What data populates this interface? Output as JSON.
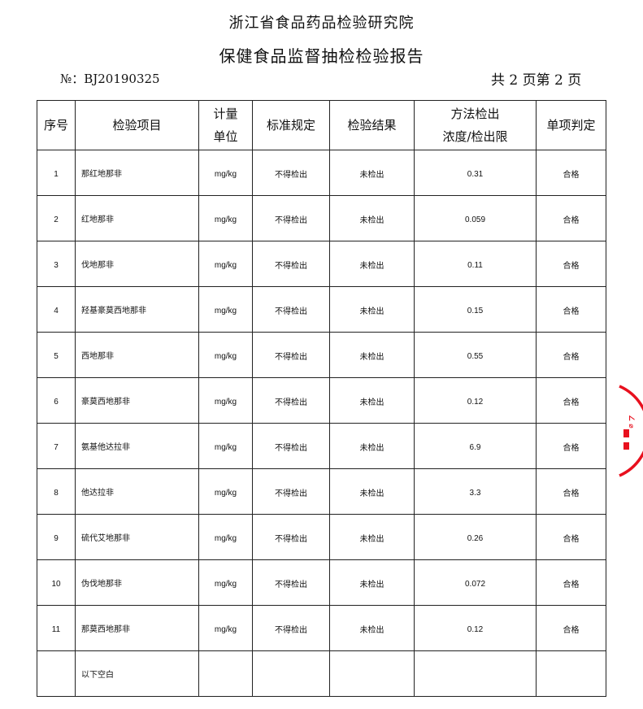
{
  "header": {
    "institute": "浙江省食品药品检验研究院",
    "title": "保健食品监督抽检检验报告",
    "report_no": "№：BJ20190325",
    "page_info": "共 2 页第 2 页"
  },
  "table": {
    "columns": [
      "序号",
      "检验项目",
      "计量\n单位",
      "标准规定",
      "检验结果",
      "方法检出\n浓度/检出限",
      "单项判定"
    ],
    "col_unit": [
      "计量",
      "单位"
    ],
    "col_limit": [
      "方法检出",
      "浓度/检出限"
    ],
    "rows": [
      {
        "no": "1",
        "item": "那红地那非",
        "unit": "mg/kg",
        "standard": "不得检出",
        "result": "未检出",
        "limit": "0.31",
        "verdict": "合格"
      },
      {
        "no": "2",
        "item": "红地那非",
        "unit": "mg/kg",
        "standard": "不得检出",
        "result": "未检出",
        "limit": "0.059",
        "verdict": "合格"
      },
      {
        "no": "3",
        "item": "伐地那非",
        "unit": "mg/kg",
        "standard": "不得检出",
        "result": "未检出",
        "limit": "0.11",
        "verdict": "合格"
      },
      {
        "no": "4",
        "item": "羟基豪莫西地那非",
        "unit": "mg/kg",
        "standard": "不得检出",
        "result": "未检出",
        "limit": "0.15",
        "verdict": "合格"
      },
      {
        "no": "5",
        "item": "西地那非",
        "unit": "mg/kg",
        "standard": "不得检出",
        "result": "未检出",
        "limit": "0.55",
        "verdict": "合格"
      },
      {
        "no": "6",
        "item": "豪莫西地那非",
        "unit": "mg/kg",
        "standard": "不得检出",
        "result": "未检出",
        "limit": "0.12",
        "verdict": "合格"
      },
      {
        "no": "7",
        "item": "氨基他达拉非",
        "unit": "mg/kg",
        "standard": "不得检出",
        "result": "未检出",
        "limit": "6.9",
        "verdict": "合格"
      },
      {
        "no": "8",
        "item": "他达拉非",
        "unit": "mg/kg",
        "standard": "不得检出",
        "result": "未检出",
        "limit": "3.3",
        "verdict": "合格"
      },
      {
        "no": "9",
        "item": "硫代艾地那非",
        "unit": "mg/kg",
        "standard": "不得检出",
        "result": "未检出",
        "limit": "0.26",
        "verdict": "合格"
      },
      {
        "no": "10",
        "item": "伪伐地那非",
        "unit": "mg/kg",
        "standard": "不得检出",
        "result": "未检出",
        "limit": "0.072",
        "verdict": "合格"
      },
      {
        "no": "11",
        "item": "那莫西地那非",
        "unit": "mg/kg",
        "standard": "不得检出",
        "result": "未检出",
        "limit": "0.12",
        "verdict": "合格"
      }
    ],
    "blank_note": "以下空白"
  },
  "stamp": {
    "color": "#e8101e"
  }
}
